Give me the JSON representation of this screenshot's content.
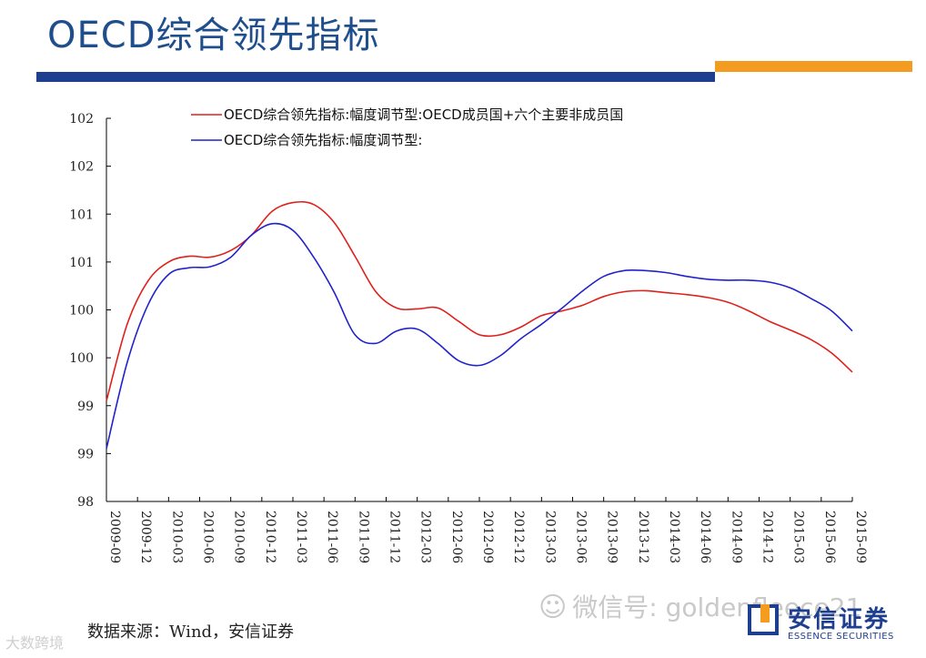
{
  "header": {
    "title": "OECD综合领先指标"
  },
  "footer": {
    "source": "数据来源：Wind，安信证券",
    "watermark": "微信号: goldenfleece21",
    "watermark_left": "大数跨境",
    "logo_cn": "安信证券",
    "logo_en": "ESSENCE SECURITIES"
  },
  "colors": {
    "accent_blue": "#1e3f8f",
    "accent_orange": "#f39c1f",
    "series_red": "#e0201b",
    "series_blue": "#2222cc"
  },
  "chart_data": {
    "type": "line",
    "title": "",
    "xlabel": "",
    "ylabel": "",
    "ylim": [
      98,
      102
    ],
    "yticks": [
      98,
      98.5,
      99,
      99.5,
      100,
      100.5,
      101,
      101.5,
      102
    ],
    "ytick_labels": [
      "98",
      "99",
      "99",
      "100",
      "100",
      "101",
      "101",
      "102",
      "102"
    ],
    "xlim": [
      0,
      72
    ],
    "x_tick_labels": [
      "2009-09",
      "2009-12",
      "2010-03",
      "2010-06",
      "2010-09",
      "2010-12",
      "2011-03",
      "2011-06",
      "2011-09",
      "2011-12",
      "2012-03",
      "2012-06",
      "2012-09",
      "2012-12",
      "2013-03",
      "2013-06",
      "2013-09",
      "2013-12",
      "2014-03",
      "2014-06",
      "2014-09",
      "2014-12",
      "2015-03",
      "2015-06",
      "2015-09"
    ],
    "legend_position": "top",
    "series": [
      {
        "name": "OECD综合领先指标:幅度调节型:OECD成员国+六个主要非成员国",
        "color": "#e0201b",
        "x": [
          0,
          2,
          4,
          6,
          8,
          10,
          12,
          14,
          16,
          18,
          20,
          22,
          24,
          26,
          28,
          30,
          32,
          34,
          36,
          38,
          40,
          42,
          44,
          46,
          48,
          50,
          52,
          54,
          56,
          58,
          60,
          62,
          64,
          66,
          68,
          70,
          72
        ],
        "values": [
          99.05,
          99.85,
          100.3,
          100.5,
          100.56,
          100.55,
          100.62,
          100.78,
          101.03,
          101.12,
          101.1,
          100.91,
          100.56,
          100.19,
          100.02,
          100.01,
          100.02,
          99.88,
          99.74,
          99.74,
          99.82,
          99.94,
          99.99,
          100.05,
          100.14,
          100.19,
          100.2,
          100.18,
          100.16,
          100.13,
          100.08,
          99.99,
          99.88,
          99.79,
          99.69,
          99.55,
          99.35
        ]
      },
      {
        "name": "OECD综合领先指标:幅度调节型:",
        "color": "#2222cc",
        "x": [
          0,
          2,
          4,
          6,
          8,
          10,
          12,
          14,
          16,
          18,
          20,
          22,
          24,
          26,
          28,
          30,
          32,
          34,
          36,
          38,
          40,
          42,
          44,
          46,
          48,
          50,
          52,
          54,
          56,
          58,
          60,
          62,
          64,
          66,
          68,
          70,
          72
        ],
        "values": [
          98.55,
          99.45,
          100.05,
          100.37,
          100.44,
          100.45,
          100.55,
          100.78,
          100.9,
          100.83,
          100.55,
          100.18,
          99.74,
          99.65,
          99.78,
          99.8,
          99.65,
          99.47,
          99.42,
          99.52,
          99.7,
          99.85,
          100.02,
          100.2,
          100.35,
          100.41,
          100.41,
          100.39,
          100.35,
          100.32,
          100.31,
          100.31,
          100.29,
          100.23,
          100.12,
          99.99,
          99.78
        ]
      }
    ]
  }
}
